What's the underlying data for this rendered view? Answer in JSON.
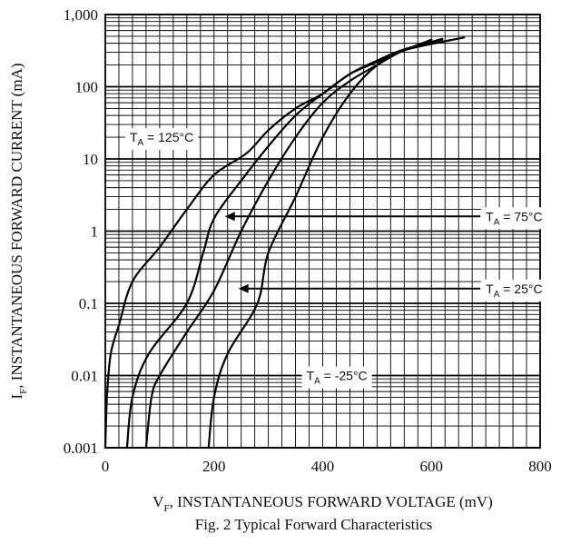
{
  "chart_data": {
    "type": "line",
    "caption": "Fig. 2  Typical Forward Characteristics",
    "xlabel": {
      "main": "V",
      "sub": "F",
      "rest": ", INSTANTANEOUS FORWARD VOLTAGE (mV)"
    },
    "ylabel": {
      "main": "I",
      "sub": "F",
      "rest": ", INSTANTANEOUS FORWARD CURRENT (mA)"
    },
    "x_scale": "linear",
    "y_scale": "log",
    "xlim": [
      0,
      800
    ],
    "ylim": [
      0.001,
      1000
    ],
    "x_ticks": [
      {
        "value": 0,
        "label": "0"
      },
      {
        "value": 200,
        "label": "200"
      },
      {
        "value": 400,
        "label": "400"
      },
      {
        "value": 600,
        "label": "600"
      },
      {
        "value": 800,
        "label": "800"
      }
    ],
    "y_ticks": [
      {
        "value": 1000,
        "label": "1,000"
      },
      {
        "value": 100,
        "label": "100"
      },
      {
        "value": 10,
        "label": "10"
      },
      {
        "value": 1,
        "label": "1"
      },
      {
        "value": 0.1,
        "label": "0.1"
      },
      {
        "value": 0.01,
        "label": "0.01"
      },
      {
        "value": 0.001,
        "label": "0.001"
      }
    ],
    "grid": true,
    "series": [
      {
        "name": "T_A = 125°C",
        "label_main": "T",
        "label_sub": "A",
        "label_rest": " = 125°C",
        "label_pos": {
          "x": 45,
          "y": 20
        },
        "points": [
          [
            0,
            0.001
          ],
          [
            3,
            0.005
          ],
          [
            10,
            0.02
          ],
          [
            25,
            0.05
          ],
          [
            50,
            0.2
          ],
          [
            100,
            0.6
          ],
          [
            150,
            2
          ],
          [
            200,
            6
          ],
          [
            260,
            12
          ],
          [
            300,
            25
          ],
          [
            350,
            50
          ],
          [
            400,
            80
          ],
          [
            450,
            150
          ],
          [
            500,
            220
          ],
          [
            550,
            320
          ],
          [
            600,
            450
          ]
        ]
      },
      {
        "name": "T_A = 75°C",
        "label_main": "T",
        "label_sub": "A",
        "label_rest": " = 75°C",
        "label_pos": {
          "x": 700,
          "y": 1.6
        },
        "arrow_to": {
          "x": 220,
          "y": 1.6
        },
        "points": [
          [
            40,
            0.001
          ],
          [
            50,
            0.005
          ],
          [
            80,
            0.02
          ],
          [
            150,
            0.1
          ],
          [
            180,
            0.5
          ],
          [
            200,
            1.5
          ],
          [
            250,
            5
          ],
          [
            300,
            15
          ],
          [
            350,
            40
          ],
          [
            400,
            80
          ],
          [
            450,
            150
          ],
          [
            500,
            230
          ],
          [
            550,
            330
          ],
          [
            620,
            450
          ]
        ]
      },
      {
        "name": "T_A = 25°C",
        "label_main": "T",
        "label_sub": "A",
        "label_rest": " = 25°C",
        "label_pos": {
          "x": 700,
          "y": 0.16
        },
        "arrow_to": {
          "x": 245,
          "y": 0.16
        },
        "points": [
          [
            75,
            0.001
          ],
          [
            85,
            0.005
          ],
          [
            100,
            0.01
          ],
          [
            150,
            0.04
          ],
          [
            200,
            0.15
          ],
          [
            250,
            1
          ],
          [
            300,
            5
          ],
          [
            350,
            20
          ],
          [
            400,
            60
          ],
          [
            450,
            120
          ],
          [
            500,
            200
          ],
          [
            550,
            320
          ],
          [
            620,
            460
          ]
        ]
      },
      {
        "name": "T_A = -25°C",
        "label_main": "T",
        "label_sub": "A",
        "label_rest": " = -25°C",
        "label_pos": {
          "x": 370,
          "y": 0.01
        },
        "points": [
          [
            190,
            0.001
          ],
          [
            200,
            0.005
          ],
          [
            225,
            0.02
          ],
          [
            280,
            0.1
          ],
          [
            300,
            0.5
          ],
          [
            350,
            3
          ],
          [
            400,
            20
          ],
          [
            450,
            80
          ],
          [
            500,
            200
          ],
          [
            550,
            320
          ],
          [
            660,
            480
          ]
        ]
      }
    ]
  }
}
